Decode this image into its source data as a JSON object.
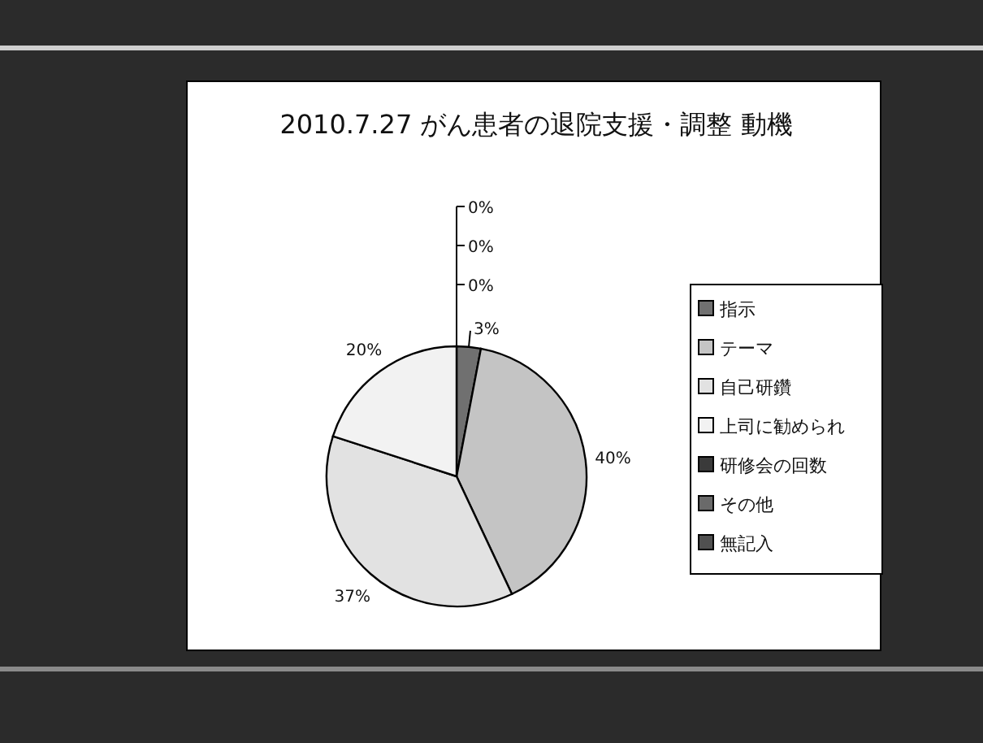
{
  "chart_data": {
    "type": "pie",
    "title": "2010.7.27 がん患者の退院支援・調整 動機",
    "categories": [
      "指示",
      "テーマ",
      "自己研鑽",
      "上司に勧められ",
      "研修会の回数",
      "その他",
      "無記入"
    ],
    "values": [
      3,
      40,
      37,
      20,
      0,
      0,
      0
    ],
    "value_labels": [
      "3%",
      "40%",
      "37%",
      "20%",
      "0%",
      "0%",
      "0%"
    ],
    "colors": [
      "#707070",
      "#c4c4c4",
      "#e2e2e2",
      "#f2f2f2",
      "#3a3a3a",
      "#6a6a6a",
      "#505050"
    ],
    "legend": "right"
  }
}
